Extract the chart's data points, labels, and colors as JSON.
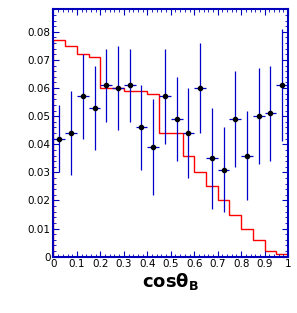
{
  "hist_bins": [
    0.0,
    0.05,
    0.1,
    0.15,
    0.2,
    0.25,
    0.3,
    0.35,
    0.4,
    0.45,
    0.5,
    0.55,
    0.6,
    0.65,
    0.7,
    0.75,
    0.8,
    0.85,
    0.9,
    0.95,
    1.0
  ],
  "hist_values": [
    0.077,
    0.075,
    0.072,
    0.071,
    0.06,
    0.06,
    0.059,
    0.059,
    0.058,
    0.044,
    0.044,
    0.036,
    0.03,
    0.025,
    0.02,
    0.015,
    0.01,
    0.006,
    0.002,
    0.001
  ],
  "point_x": [
    0.025,
    0.075,
    0.125,
    0.175,
    0.225,
    0.275,
    0.325,
    0.375,
    0.425,
    0.475,
    0.525,
    0.575,
    0.625,
    0.675,
    0.725,
    0.775,
    0.825,
    0.875,
    0.925,
    0.975
  ],
  "point_y": [
    0.042,
    0.044,
    0.057,
    0.053,
    0.061,
    0.06,
    0.061,
    0.046,
    0.039,
    0.057,
    0.049,
    0.044,
    0.06,
    0.035,
    0.031,
    0.049,
    0.036,
    0.05,
    0.051,
    0.061
  ],
  "point_yerr": [
    0.012,
    0.015,
    0.015,
    0.015,
    0.013,
    0.015,
    0.013,
    0.015,
    0.017,
    0.017,
    0.015,
    0.016,
    0.016,
    0.018,
    0.015,
    0.017,
    0.016,
    0.017,
    0.017,
    0.02
  ],
  "point_xerr": 0.025,
  "hist_color": "#ff0000",
  "point_color": "#0000cc",
  "marker_color": "#000000",
  "bg_color": "#ffffff",
  "frame_color": "#0000bb",
  "xlim": [
    0.0,
    1.0
  ],
  "ylim": [
    0.0,
    0.088
  ],
  "yticks": [
    0,
    0.01,
    0.02,
    0.03,
    0.04,
    0.05,
    0.06,
    0.07,
    0.08
  ],
  "ytick_labels": [
    "0",
    "0.01",
    "0.02",
    "0.03",
    "0.04",
    "0.05",
    "0.06",
    "0.07",
    "0.08"
  ],
  "xtick_positions": [
    0.0,
    0.1,
    0.2,
    0.3,
    0.4,
    0.5,
    0.6,
    0.7,
    0.8,
    0.9,
    1.0
  ],
  "xtick_labels": [
    "0",
    "0.1",
    "0.2",
    "0.3",
    "0.4",
    "0.5",
    "0.6",
    "0.7",
    "0.8",
    "0.9",
    "1"
  ]
}
